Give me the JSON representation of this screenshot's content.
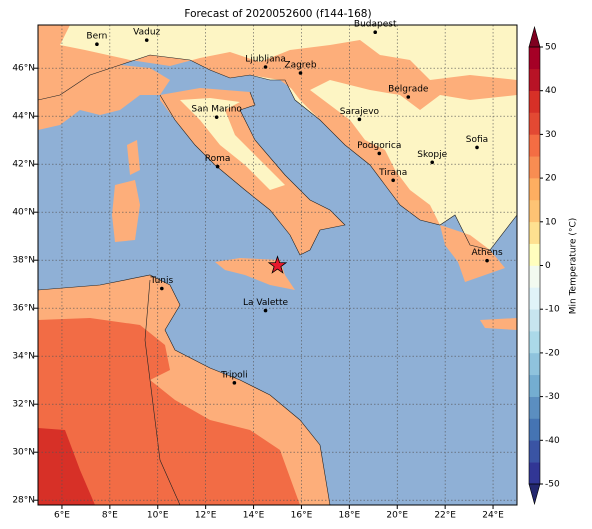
{
  "title": "Forecast of 2020052600 (f144-168)",
  "map": {
    "lonlim": [
      5,
      25
    ],
    "latlim": [
      27.8,
      47.8
    ],
    "lonticks": [
      {
        "value": 6,
        "label": "6°E"
      },
      {
        "value": 8,
        "label": "8°E"
      },
      {
        "value": 10,
        "label": "10°E"
      },
      {
        "value": 12,
        "label": "12°E"
      },
      {
        "value": 14,
        "label": "14°E"
      },
      {
        "value": 16,
        "label": "16°E"
      },
      {
        "value": 18,
        "label": "18°E"
      },
      {
        "value": 20,
        "label": "20°E"
      },
      {
        "value": 22,
        "label": "22°E"
      },
      {
        "value": 24,
        "label": "24°E"
      }
    ],
    "latticks": [
      {
        "value": 28,
        "label": "28°N"
      },
      {
        "value": 30,
        "label": "30°N"
      },
      {
        "value": 32,
        "label": "32°N"
      },
      {
        "value": 34,
        "label": "34°N"
      },
      {
        "value": 36,
        "label": "36°N"
      },
      {
        "value": 38,
        "label": "38°N"
      },
      {
        "value": 40,
        "label": "40°N"
      },
      {
        "value": 42,
        "label": "42°N"
      },
      {
        "value": 44,
        "label": "44°N"
      },
      {
        "value": 46,
        "label": "46°N"
      }
    ],
    "grid": true
  },
  "colorbar": {
    "label": "Min Temperature (°C)",
    "lim": [
      -50,
      50
    ],
    "ticks": [
      -50,
      -40,
      -30,
      -20,
      -10,
      0,
      10,
      20,
      30,
      40,
      50
    ],
    "colors": [
      "#313695",
      "#3a54a4",
      "#4574b3",
      "#5b8ec0",
      "#74add1",
      "#8fc3dd",
      "#abd9e9",
      "#c7e5ef",
      "#e0f3f8",
      "#f2faf0",
      "#fffebe",
      "#fee090",
      "#fdc374",
      "#fdae61",
      "#f88d52",
      "#f46d43",
      "#e34933",
      "#d73027",
      "#b81326",
      "#a50026"
    ],
    "under_color": "#23276e",
    "over_color": "#7f0020"
  },
  "cities": [
    {
      "name": "Bern",
      "lon": 7.46,
      "lat": 47.0
    },
    {
      "name": "Vaduz",
      "lon": 9.54,
      "lat": 47.17
    },
    {
      "name": "Budapest",
      "lon": 19.08,
      "lat": 47.5
    },
    {
      "name": "Ljubljana",
      "lon": 14.5,
      "lat": 46.05
    },
    {
      "name": "Zagreb",
      "lon": 15.96,
      "lat": 45.8
    },
    {
      "name": "Belgrade",
      "lon": 20.46,
      "lat": 44.8
    },
    {
      "name": "San Marino",
      "lon": 12.46,
      "lat": 43.96
    },
    {
      "name": "Sarajevo",
      "lon": 18.42,
      "lat": 43.87
    },
    {
      "name": "Sofia",
      "lon": 23.33,
      "lat": 42.7
    },
    {
      "name": "Podgorica",
      "lon": 19.25,
      "lat": 42.45
    },
    {
      "name": "Skopje",
      "lon": 21.46,
      "lat": 42.08
    },
    {
      "name": "Roma",
      "lon": 12.5,
      "lat": 41.9
    },
    {
      "name": "Tirana",
      "lon": 19.83,
      "lat": 41.33
    },
    {
      "name": "Athens",
      "lon": 23.75,
      "lat": 37.98
    },
    {
      "name": "Tunis",
      "lon": 10.17,
      "lat": 36.82
    },
    {
      "name": "La Valette",
      "lon": 14.5,
      "lat": 35.9
    },
    {
      "name": "Tripoli",
      "lon": 13.2,
      "lat": 32.89
    }
  ],
  "marker": {
    "lon": 15.0,
    "lat": 37.78,
    "color": "#e8192c"
  }
}
